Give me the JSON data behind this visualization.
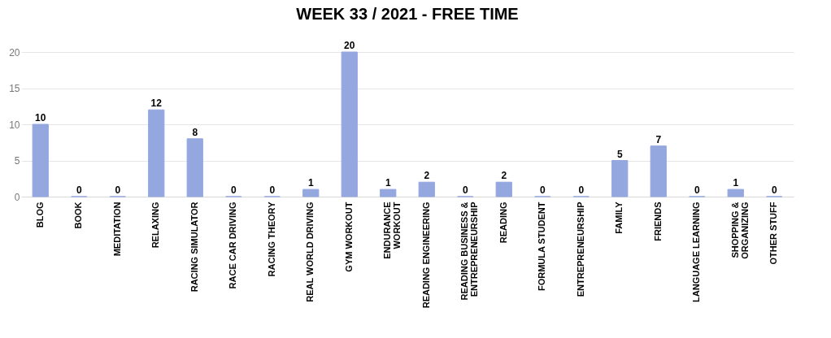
{
  "chart_data": {
    "type": "bar",
    "title": "WEEK 33 / 2021 - FREE TIME",
    "categories": [
      "BLOG",
      "BOOK",
      "MEDITATION",
      "RELAXING",
      "RACING SIMULATOR",
      "RACE CAR DRIVING",
      "RACING THEORY",
      "REAL WORLD DRIVING",
      "GYM WORKOUT",
      "ENDURANCE\nWORKOUT",
      "READING ENGINEERING",
      "READING BUSINESS &\nENTREPRENEURSHIP",
      "READING",
      "FORMULA STUDENT",
      "ENTREPRENEURSHIP",
      "FAMILY",
      "FRIENDS",
      "LANGUAGE LEARNING",
      "SHOPPING &\nORGANIZING",
      "OTHER STUFF"
    ],
    "values": [
      10,
      0,
      0,
      12,
      8,
      0,
      0,
      1,
      20,
      1,
      2,
      0,
      2,
      0,
      0,
      5,
      7,
      0,
      1,
      0
    ],
    "color": "#94a7de",
    "ylim": [
      0,
      20
    ],
    "yticks": [
      0,
      5,
      10,
      15,
      20
    ],
    "grid": "y",
    "data_labels": true
  }
}
